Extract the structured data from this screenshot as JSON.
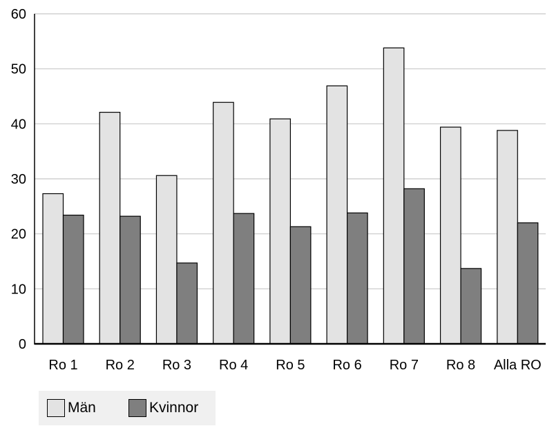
{
  "chart_data": {
    "type": "bar",
    "categories": [
      "Ro 1",
      "Ro 2",
      "Ro 3",
      "Ro 4",
      "Ro 5",
      "Ro 6",
      "Ro 7",
      "Ro 8",
      "Alla RO"
    ],
    "series": [
      {
        "name": "Män",
        "color": "#e3e3e3",
        "values": [
          27.3,
          42.1,
          30.6,
          43.9,
          40.9,
          46.9,
          53.8,
          39.4,
          38.8
        ]
      },
      {
        "name": "Kvinnor",
        "color": "#7f7f7f",
        "values": [
          23.4,
          23.2,
          14.7,
          23.7,
          21.3,
          23.8,
          28.2,
          13.7,
          22.0
        ]
      }
    ],
    "yticks": [
      "0",
      "10",
      "20",
      "30",
      "40",
      "50",
      "60"
    ],
    "ylim": [
      0,
      60
    ],
    "grid": true,
    "legend_position": "bottom-left"
  }
}
